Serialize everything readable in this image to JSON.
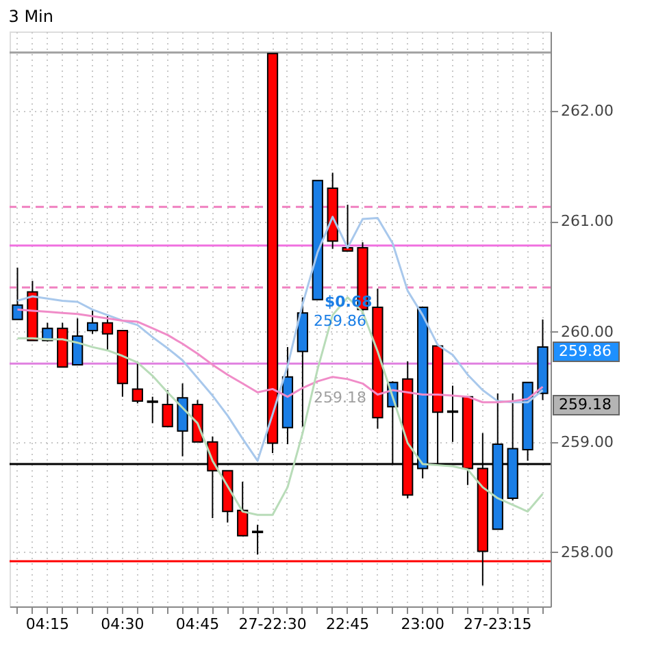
{
  "chart_data": {
    "type": "candlestick",
    "title": "3 Min",
    "categories": [
      null,
      null,
      "04:15",
      null,
      null,
      null,
      null,
      "04:30",
      null,
      null,
      null,
      null,
      "04:45",
      null,
      null,
      null,
      null,
      "27-22:30",
      null,
      null,
      null,
      null,
      "22:45",
      null,
      null,
      null,
      null,
      "23:00",
      null,
      null,
      null,
      null,
      "27-23:15",
      null,
      null,
      null
    ],
    "ohlc": [
      [
        260.11,
        260.58,
        260.11,
        260.24
      ],
      [
        260.36,
        260.46,
        259.92,
        259.92
      ],
      [
        259.92,
        260.08,
        259.91,
        260.03
      ],
      [
        260.03,
        260.08,
        259.68,
        259.68
      ],
      [
        259.7,
        260.12,
        259.7,
        259.96
      ],
      [
        260.01,
        260.19,
        259.98,
        260.08
      ],
      [
        260.08,
        260.14,
        259.83,
        259.98
      ],
      [
        260.01,
        260.01,
        259.41,
        259.53
      ],
      [
        259.48,
        259.71,
        259.35,
        259.37
      ],
      [
        259.37,
        259.41,
        259.17,
        259.36
      ],
      [
        259.34,
        259.47,
        259.14,
        259.14
      ],
      [
        259.1,
        259.53,
        258.87,
        259.4
      ],
      [
        259.34,
        259.38,
        259.0,
        259.0
      ],
      [
        259.0,
        259.05,
        258.31,
        258.74
      ],
      [
        258.74,
        258.74,
        258.27,
        258.37
      ],
      [
        258.38,
        258.64,
        258.15,
        258.15
      ],
      [
        258.19,
        258.25,
        257.98,
        258.18
      ],
      [
        262.52,
        262.52,
        258.9,
        258.99
      ],
      [
        259.13,
        259.86,
        258.98,
        259.59
      ],
      [
        259.82,
        260.31,
        259.14,
        260.17
      ],
      [
        260.29,
        261.37,
        260.29,
        261.37
      ],
      [
        261.3,
        261.44,
        260.75,
        260.82
      ],
      [
        260.76,
        261.15,
        260.73,
        260.73
      ],
      [
        260.76,
        260.81,
        260.16,
        260.2
      ],
      [
        260.22,
        260.39,
        259.12,
        259.22
      ],
      [
        259.32,
        259.55,
        258.8,
        259.54
      ],
      [
        259.57,
        259.73,
        258.49,
        258.52
      ],
      [
        258.76,
        260.22,
        258.67,
        260.22
      ],
      [
        259.87,
        259.89,
        258.8,
        259.27
      ],
      [
        259.28,
        259.51,
        259.0,
        259.27
      ],
      [
        259.41,
        259.41,
        258.61,
        258.76
      ],
      [
        258.76,
        259.08,
        257.7,
        258.01
      ],
      [
        258.21,
        259.44,
        258.21,
        258.98
      ],
      [
        258.49,
        259.44,
        258.47,
        258.94
      ],
      [
        258.93,
        259.54,
        258.83,
        259.54
      ],
      [
        259.44,
        260.11,
        259.38,
        259.86
      ]
    ],
    "colors": [
      "#1a7ee6",
      "#ff0000",
      "#1a7ee6",
      "#ff0000",
      "#1a7ee6",
      "#1a7ee6",
      "#ff0000",
      "#ff0000",
      "#ff0000",
      "#ff0000",
      "#ff0000",
      "#1a7ee6",
      "#ff0000",
      "#ff0000",
      "#ff0000",
      "#ff0000",
      "#ff0000",
      "#ff0000",
      "#1a7ee6",
      "#1a7ee6",
      "#1a7ee6",
      "#ff0000",
      "#ff0000",
      "#ff0000",
      "#ff0000",
      "#1a7ee6",
      "#ff0000",
      "#1a7ee6",
      "#ff0000",
      "#ff0000",
      "#ff0000",
      "#ff0000",
      "#1a7ee6",
      "#1a7ee6",
      "#1a7ee6",
      "#1a7ee6"
    ],
    "series": [
      {
        "type": "line",
        "color": "#a8c8ec",
        "values": [
          260.28,
          260.32,
          260.3,
          260.28,
          260.27,
          260.2,
          260.15,
          260.1,
          260.06,
          259.95,
          259.85,
          259.74,
          259.58,
          259.42,
          259.24,
          259.03,
          258.83,
          259.25,
          259.69,
          260.25,
          260.72,
          261.04,
          260.76,
          261.02,
          261.03,
          260.8,
          260.37,
          260.15,
          259.88,
          259.79,
          259.61,
          259.47,
          259.37,
          259.36,
          259.36,
          259.47
        ]
      },
      {
        "type": "line",
        "color": "#f08cc8",
        "values": [
          260.2,
          260.19,
          260.18,
          260.17,
          260.16,
          260.14,
          260.12,
          260.1,
          260.09,
          260.03,
          259.97,
          259.89,
          259.8,
          259.7,
          259.61,
          259.53,
          259.45,
          259.48,
          259.41,
          259.49,
          259.55,
          259.59,
          259.57,
          259.53,
          259.43,
          259.47,
          259.45,
          259.43,
          259.43,
          259.42,
          259.41,
          259.36,
          259.36,
          259.37,
          259.39,
          259.5
        ]
      },
      {
        "type": "line",
        "color": "#b8dcb8",
        "values": [
          259.94,
          259.94,
          259.93,
          259.93,
          259.9,
          259.86,
          259.83,
          259.78,
          259.72,
          259.6,
          259.45,
          259.31,
          259.17,
          258.83,
          258.6,
          258.37,
          258.34,
          258.34,
          258.59,
          259.08,
          259.66,
          260.15,
          260.31,
          260.18,
          259.82,
          259.41,
          258.99,
          258.8,
          258.79,
          258.78,
          258.75,
          258.59,
          258.49,
          258.43,
          258.37,
          258.53
        ]
      }
    ],
    "ref_lines": [
      {
        "axis": "y",
        "value": 262.53,
        "color": "#a0a0a0",
        "line_style": "solid"
      },
      {
        "axis": "y",
        "value": 261.13,
        "color": "#f080c0",
        "line_style": "dashed"
      },
      {
        "axis": "y",
        "value": 260.78,
        "color": "#f070e0",
        "line_style": "solid"
      },
      {
        "axis": "y",
        "value": 260.4,
        "color": "#f080c0",
        "line_style": "dashed"
      },
      {
        "axis": "y",
        "value": 259.71,
        "color": "#e080e0",
        "line_style": "solid"
      },
      {
        "axis": "y",
        "value": 258.8,
        "color": "#000000",
        "line_style": "solid"
      },
      {
        "axis": "y",
        "value": 257.92,
        "color": "#ff0000",
        "line_style": "solid"
      }
    ],
    "annotations": [
      "$0.68",
      "259.86",
      "259.18",
      "259.86",
      "259.18"
    ],
    "ylim": [
      257.51,
      262.72
    ],
    "yticks": [
      {
        "value": 258,
        "label": "258.00"
      },
      {
        "value": 259,
        "label": "259.00"
      },
      {
        "value": 260,
        "label": "260.00"
      },
      {
        "value": 261,
        "label": "261.00"
      },
      {
        "value": 262,
        "label": "262.00"
      }
    ],
    "grid": true
  }
}
